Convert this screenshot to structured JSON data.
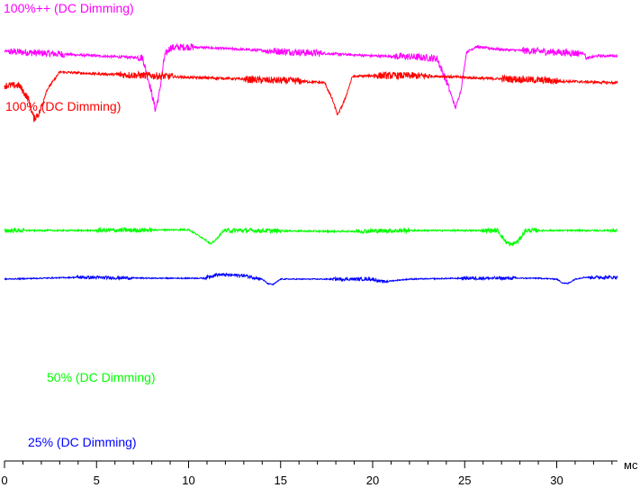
{
  "chart_data": {
    "type": "line",
    "title": "",
    "xlabel": "",
    "ylabel": "",
    "x_unit": "мс",
    "xlim": [
      0,
      33.3
    ],
    "x_ticks": [
      0,
      5,
      10,
      15,
      20,
      25,
      30
    ],
    "grid": false,
    "legend": "labels above each trace",
    "series": [
      {
        "name": "100%++ (DC Dimming)",
        "color": "#ff00ff",
        "x": [
          0,
          2,
          4,
          6,
          7.5,
          7.9,
          8.2,
          8.4,
          8.7,
          9.0,
          10,
          12,
          14,
          16,
          18,
          20,
          22,
          23.5,
          24.1,
          24.5,
          24.8,
          25.1,
          25.6,
          27,
          29,
          31,
          31.5,
          31.6,
          32.2,
          33.3
        ],
        "values": [
          93,
          91,
          89,
          87,
          86,
          55,
          28,
          45,
          88,
          97,
          98,
          96,
          94,
          92,
          90,
          88,
          87,
          85,
          55,
          30,
          50,
          92,
          98,
          95,
          93,
          91,
          91,
          85,
          88,
          88
        ],
        "noise_amp": 4
      },
      {
        "name": "100% (DC Dimming)",
        "color": "#ff0000",
        "x": [
          0,
          0.8,
          1.3,
          1.6,
          1.9,
          2.3,
          3.0,
          5,
          8,
          10,
          12,
          14,
          16,
          17.4,
          17.8,
          18.1,
          18.5,
          18.9,
          20,
          22,
          24,
          26,
          28,
          30,
          33.3
        ],
        "values": [
          55,
          55,
          40,
          18,
          25,
          50,
          70,
          68,
          66,
          64,
          63,
          61,
          60,
          58,
          40,
          22,
          40,
          65,
          66,
          66,
          65,
          63,
          62,
          60,
          58
        ],
        "noise_amp": 4
      },
      {
        "name": "50% (DC Dimming)",
        "color": "#00ff00",
        "x": [
          0,
          5,
          10,
          10.9,
          11.2,
          11.5,
          11.9,
          13,
          18,
          22,
          26.8,
          27.2,
          27.5,
          27.9,
          28.3,
          30,
          33.3
        ],
        "values": [
          -106,
          -106,
          -105,
          -116,
          -121,
          -116,
          -106,
          -106,
          -107,
          -106,
          -106,
          -118,
          -122,
          -118,
          -106,
          -106,
          -106
        ],
        "noise_amp": 2.5
      },
      {
        "name": "25% (DC Dimming)",
        "color": "#0000ff",
        "x": [
          0,
          4,
          8,
          10.8,
          11.5,
          13,
          14,
          14.3,
          14.6,
          15,
          16,
          20,
          20.5,
          22,
          25,
          29,
          30,
          30.3,
          30.6,
          31,
          31.5,
          33.3
        ],
        "values": [
          -160,
          -158,
          -159,
          -159,
          -155,
          -156,
          -160,
          -165,
          -166,
          -160,
          -160,
          -160,
          -163,
          -160,
          -159,
          -159,
          -160,
          -164,
          -165,
          -160,
          -158,
          -158
        ],
        "noise_amp": 1.8
      }
    ]
  }
}
